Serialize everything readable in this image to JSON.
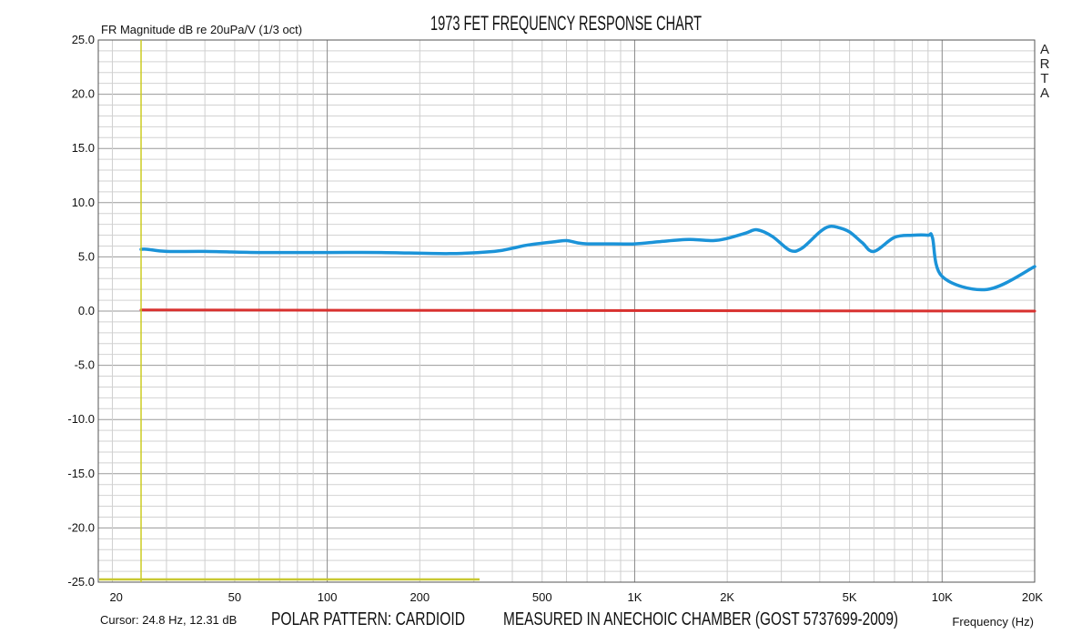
{
  "chart_data": {
    "type": "line",
    "title": "1973 FET  FREQUENCY RESPONSE CHART",
    "ylabel": "FR Magnitude dB re 20uPa/V (1/3 oct)",
    "xlabel": "Frequency (Hz)",
    "x_scale": "log",
    "xlim": [
      18,
      20000
    ],
    "ylim": [
      -25,
      25
    ],
    "yticks": [
      25,
      20,
      15,
      10,
      5,
      0,
      -5,
      -10,
      -15,
      -20,
      -25
    ],
    "ytick_labels": [
      "25.0",
      "20.0",
      "15.0",
      "10.0",
      "5.0",
      "0.0",
      "-5.0",
      "-10.0",
      "-15.0",
      "-20.0",
      "-25.0"
    ],
    "xticks": [
      20,
      50,
      100,
      200,
      500,
      1000,
      2000,
      5000,
      10000,
      20000
    ],
    "xtick_labels": [
      "20",
      "50",
      "100",
      "200",
      "500",
      "1K",
      "2K",
      "5K",
      "10K",
      "20K"
    ],
    "grid": true,
    "series": [
      {
        "color": "#1b93d8",
        "x": [
          24.8,
          26,
          30,
          40,
          60,
          100,
          150,
          250,
          350,
          400,
          450,
          550,
          600,
          650,
          700,
          800,
          1000,
          1200,
          1500,
          1800,
          2000,
          2300,
          2500,
          2800,
          3200,
          3500,
          4000,
          4300,
          4600,
          5000,
          5500,
          6000,
          7000,
          8000,
          9000,
          9300,
          10000,
          14000,
          20000
        ],
        "y": [
          5.7,
          5.7,
          5.5,
          5.5,
          5.4,
          5.4,
          5.4,
          5.3,
          5.5,
          5.8,
          6.1,
          6.4,
          6.5,
          6.3,
          6.2,
          6.2,
          6.2,
          6.4,
          6.6,
          6.5,
          6.7,
          7.2,
          7.5,
          6.9,
          5.6,
          5.8,
          7.3,
          7.8,
          7.7,
          7.3,
          6.3,
          5.5,
          6.8,
          7.0,
          7.0,
          6.8,
          3.2,
          2.0,
          4.1
        ]
      },
      {
        "color": "#d8312f",
        "x": [
          24.8,
          20000
        ],
        "y": [
          0.1,
          0.0
        ]
      }
    ],
    "cursor": {
      "frequency": 24.8,
      "readout": "Cursor: 24.8 Hz, 12.31 dB",
      "color": "#cccc22"
    },
    "brand_text": "ARTA",
    "annotations": [
      "POLAR PATTERN: CARDIOID",
      "MEASURED IN ANECHOIC CHAMBER (GOST 5737699-2009)"
    ]
  }
}
